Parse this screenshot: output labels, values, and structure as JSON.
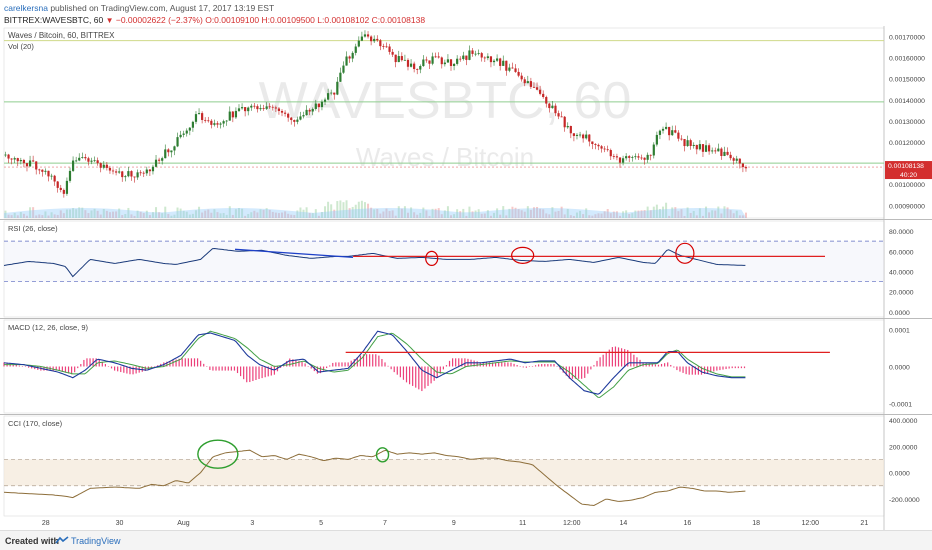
{
  "header": {
    "author": "carelkersna",
    "published": "published on TradingView.com, August 17, 2017 13:19 EST",
    "symbol": "BITTREX:WAVESBTC, 60",
    "arrow": "▼",
    "change": "−0.00002622 (−2.37%)",
    "ohlc_o": "O:0.00109100",
    "ohlc_h": "H:0.00109500",
    "ohlc_l": "L:0.00108102",
    "ohlc_c": "C:0.00108138"
  },
  "footer": {
    "made": "Created with",
    "brand": "TradingView"
  },
  "chart_data": [
    {
      "type": "candlestick",
      "title": "Waves / Bitcoin, 60, BITTREX",
      "subtitle": "Vol (20)",
      "watermark_symbol": "WAVESBTC, 60",
      "watermark_name": "Waves / Bitcoin",
      "yticks": [
        "0.00170000",
        "0.00160000",
        "0.00150000",
        "0.00140000",
        "0.00130000",
        "0.00120000",
        "0.00100000",
        "0.00090000"
      ],
      "last_price_label": "0.00108138",
      "countdown_label": "40:20",
      "last_price": 0.00108138,
      "hlines": [
        0.00168,
        0.00139,
        0.0011
      ],
      "ylim": [
        0.00084,
        0.00174
      ],
      "close_path": [
        [
          0,
          0.00114
        ],
        [
          5,
          0.00113
        ],
        [
          10,
          0.0011
        ],
        [
          15,
          0.00108
        ],
        [
          20,
          0.00104
        ],
        [
          24,
          0.00095
        ],
        [
          28,
          0.0011
        ],
        [
          33,
          0.00112
        ],
        [
          38,
          0.0011
        ],
        [
          43,
          0.00107
        ],
        [
          47,
          0.00105
        ],
        [
          52,
          0.00105
        ],
        [
          57,
          0.00106
        ],
        [
          61,
          0.00109
        ],
        [
          65,
          0.00114
        ],
        [
          69,
          0.00119
        ],
        [
          74,
          0.00125
        ],
        [
          78,
          0.00133
        ],
        [
          82,
          0.0013
        ],
        [
          86,
          0.00128
        ],
        [
          91,
          0.00132
        ],
        [
          96,
          0.00135
        ],
        [
          100,
          0.00138
        ],
        [
          105,
          0.00135
        ],
        [
          110,
          0.00137
        ],
        [
          115,
          0.00133
        ],
        [
          120,
          0.0013
        ],
        [
          125,
          0.00136
        ],
        [
          130,
          0.0014
        ],
        [
          135,
          0.00145
        ],
        [
          139,
          0.00158
        ],
        [
          143,
          0.00165
        ],
        [
          147,
          0.0017
        ],
        [
          151,
          0.00168
        ],
        [
          155,
          0.00165
        ],
        [
          159,
          0.0016
        ],
        [
          163,
          0.00157
        ],
        [
          167,
          0.00155
        ],
        [
          171,
          0.00158
        ],
        [
          175,
          0.0016
        ],
        [
          180,
          0.00157
        ],
        [
          185,
          0.00159
        ],
        [
          190,
          0.00162
        ],
        [
          195,
          0.00161
        ],
        [
          200,
          0.00159
        ],
        [
          205,
          0.00155
        ],
        [
          210,
          0.0015
        ],
        [
          215,
          0.00145
        ],
        [
          220,
          0.0014
        ],
        [
          225,
          0.00133
        ],
        [
          229,
          0.00127
        ],
        [
          233,
          0.00124
        ],
        [
          238,
          0.00122
        ],
        [
          243,
          0.00118
        ],
        [
          247,
          0.00114
        ],
        [
          251,
          0.00112
        ],
        [
          255,
          0.00114
        ],
        [
          259,
          0.00112
        ],
        [
          263,
          0.00115
        ],
        [
          267,
          0.00127
        ],
        [
          271,
          0.00125
        ],
        [
          275,
          0.00121
        ],
        [
          279,
          0.00119
        ],
        [
          283,
          0.00118
        ],
        [
          287,
          0.00116
        ],
        [
          291,
          0.00115
        ],
        [
          295,
          0.00112
        ],
        [
          299,
          0.00112
        ],
        [
          302,
          0.00108
        ]
      ]
    },
    {
      "type": "line",
      "title": "RSI (26, close)",
      "yticks": [
        "80.0000",
        "60.0000",
        "40.0000",
        "20.0000",
        "0.0000"
      ],
      "ylim": [
        -5,
        90
      ],
      "bands": [
        70,
        30
      ],
      "x": [
        0,
        10,
        20,
        25,
        28,
        35,
        45,
        55,
        65,
        70,
        80,
        85,
        95,
        105,
        115,
        125,
        135,
        140,
        150,
        160,
        170,
        180,
        190,
        200,
        210,
        220,
        230,
        240,
        250,
        260,
        265,
        270,
        275,
        280,
        290,
        302
      ],
      "values": [
        46,
        50,
        48,
        45,
        35,
        52,
        48,
        52,
        48,
        47,
        52,
        63,
        60,
        61,
        56,
        53,
        55,
        55,
        58,
        53,
        54,
        52,
        52,
        54,
        51,
        50,
        52,
        49,
        54,
        49,
        48,
        62,
        56,
        53,
        47,
        46
      ]
    },
    {
      "type": "line",
      "title": "MACD (12, 26, close, 9)",
      "yticks": [
        "0.0001",
        "0.0000",
        "-0.0001"
      ],
      "ylim": [
        -0.000125,
        0.000125
      ],
      "x": [
        0,
        8,
        15,
        22,
        28,
        33,
        38,
        45,
        52,
        58,
        65,
        72,
        79,
        84,
        89,
        94,
        99,
        104,
        110,
        116,
        122,
        128,
        134,
        140,
        146,
        152,
        158,
        164,
        170,
        176,
        182,
        188,
        194,
        200,
        206,
        212,
        218,
        224,
        230,
        236,
        242,
        248,
        254,
        260,
        266,
        270,
        274,
        278,
        284,
        290,
        296,
        302
      ],
      "macd": [
        1e-05,
        5e-06,
        -5e-06,
        -1.5e-05,
        -3e-05,
        -1e-05,
        2e-05,
        1e-05,
        -5e-06,
        -1e-05,
        5e-06,
        3e-05,
        8.5e-05,
        9e-05,
        8e-05,
        7e-05,
        3e-05,
        5e-06,
        -1e-05,
        1.5e-05,
        2e-05,
        -1.5e-05,
        -1e-05,
        -5e-06,
        4e-05,
        9.5e-05,
        8.5e-05,
        4e-05,
        -1e-05,
        -3e-05,
        -1e-05,
        1e-05,
        1e-05,
        1.5e-05,
        2e-05,
        1e-05,
        1.5e-05,
        1.5e-05,
        -3e-05,
        -6.5e-05,
        -7.5e-05,
        -3e-05,
        1e-05,
        1e-05,
        1e-05,
        4e-05,
        4e-05,
        1e-05,
        -1.5e-05,
        -2.5e-05,
        -3e-05,
        -3e-05
      ],
      "signal": [
        5e-06,
        5e-06,
        0,
        -1e-05,
        -2e-05,
        -2e-05,
        1e-05,
        1.5e-05,
        5e-06,
        -5e-06,
        0,
        2e-05,
        7.5e-05,
        9.5e-05,
        8.5e-05,
        7.5e-05,
        5e-05,
        2e-05,
        0,
        5e-06,
        1.5e-05,
        -5e-06,
        -1.5e-05,
        -1e-05,
        2.5e-05,
        8e-05,
        9e-05,
        6e-05,
        2e-05,
        -1.5e-05,
        -2e-05,
        0,
        5e-06,
        1e-05,
        1.5e-05,
        1.2e-05,
        1.2e-05,
        1.2e-05,
        -1.5e-05,
        -5e-05,
        -8.5e-05,
        -5.5e-05,
        -1e-05,
        5e-06,
        8e-06,
        3.5e-05,
        4.5e-05,
        2e-05,
        -5e-06,
        -2e-05,
        -2.8e-05,
        -2.8e-05
      ]
    },
    {
      "type": "line",
      "title": "CCI (170, close)",
      "yticks": [
        "400.0000",
        "200.0000",
        "0.0000",
        "-200.0000"
      ],
      "ylim": [
        -330,
        430
      ],
      "bands": [
        100,
        -100
      ],
      "x": [
        0,
        10,
        20,
        25,
        28,
        35,
        45,
        55,
        60,
        65,
        70,
        75,
        80,
        85,
        90,
        95,
        100,
        105,
        110,
        115,
        120,
        125,
        130,
        135,
        140,
        145,
        150,
        155,
        160,
        165,
        170,
        175,
        180,
        185,
        190,
        195,
        200,
        205,
        210,
        215,
        220,
        225,
        230,
        235,
        240,
        245,
        250,
        255,
        260,
        265,
        270,
        275,
        280,
        285,
        290,
        295,
        302
      ],
      "values": [
        -150,
        -160,
        -170,
        -180,
        -190,
        -120,
        -110,
        -120,
        -90,
        -100,
        -60,
        -80,
        0,
        120,
        150,
        160,
        170,
        120,
        130,
        100,
        140,
        120,
        90,
        110,
        100,
        130,
        120,
        170,
        140,
        150,
        140,
        150,
        130,
        120,
        100,
        110,
        110,
        90,
        80,
        60,
        -20,
        -100,
        -170,
        -240,
        -250,
        -200,
        -220,
        -210,
        -190,
        -150,
        -140,
        -110,
        -120,
        -140,
        -140,
        -150,
        -140
      ]
    }
  ],
  "x_labels": [
    {
      "x": 17,
      "label": "28"
    },
    {
      "x": 47,
      "label": "30"
    },
    {
      "x": 73,
      "label": "Aug"
    },
    {
      "x": 101,
      "label": "3"
    },
    {
      "x": 129,
      "label": "5"
    },
    {
      "x": 155,
      "label": "7"
    },
    {
      "x": 183,
      "label": "9"
    },
    {
      "x": 211,
      "label": "11"
    },
    {
      "x": 231,
      "label": "12:00"
    },
    {
      "x": 252,
      "label": "14"
    },
    {
      "x": 278,
      "label": "16"
    },
    {
      "x": 306,
      "label": "18"
    },
    {
      "x": 328,
      "label": "12:00"
    },
    {
      "x": 350,
      "label": "21"
    }
  ]
}
